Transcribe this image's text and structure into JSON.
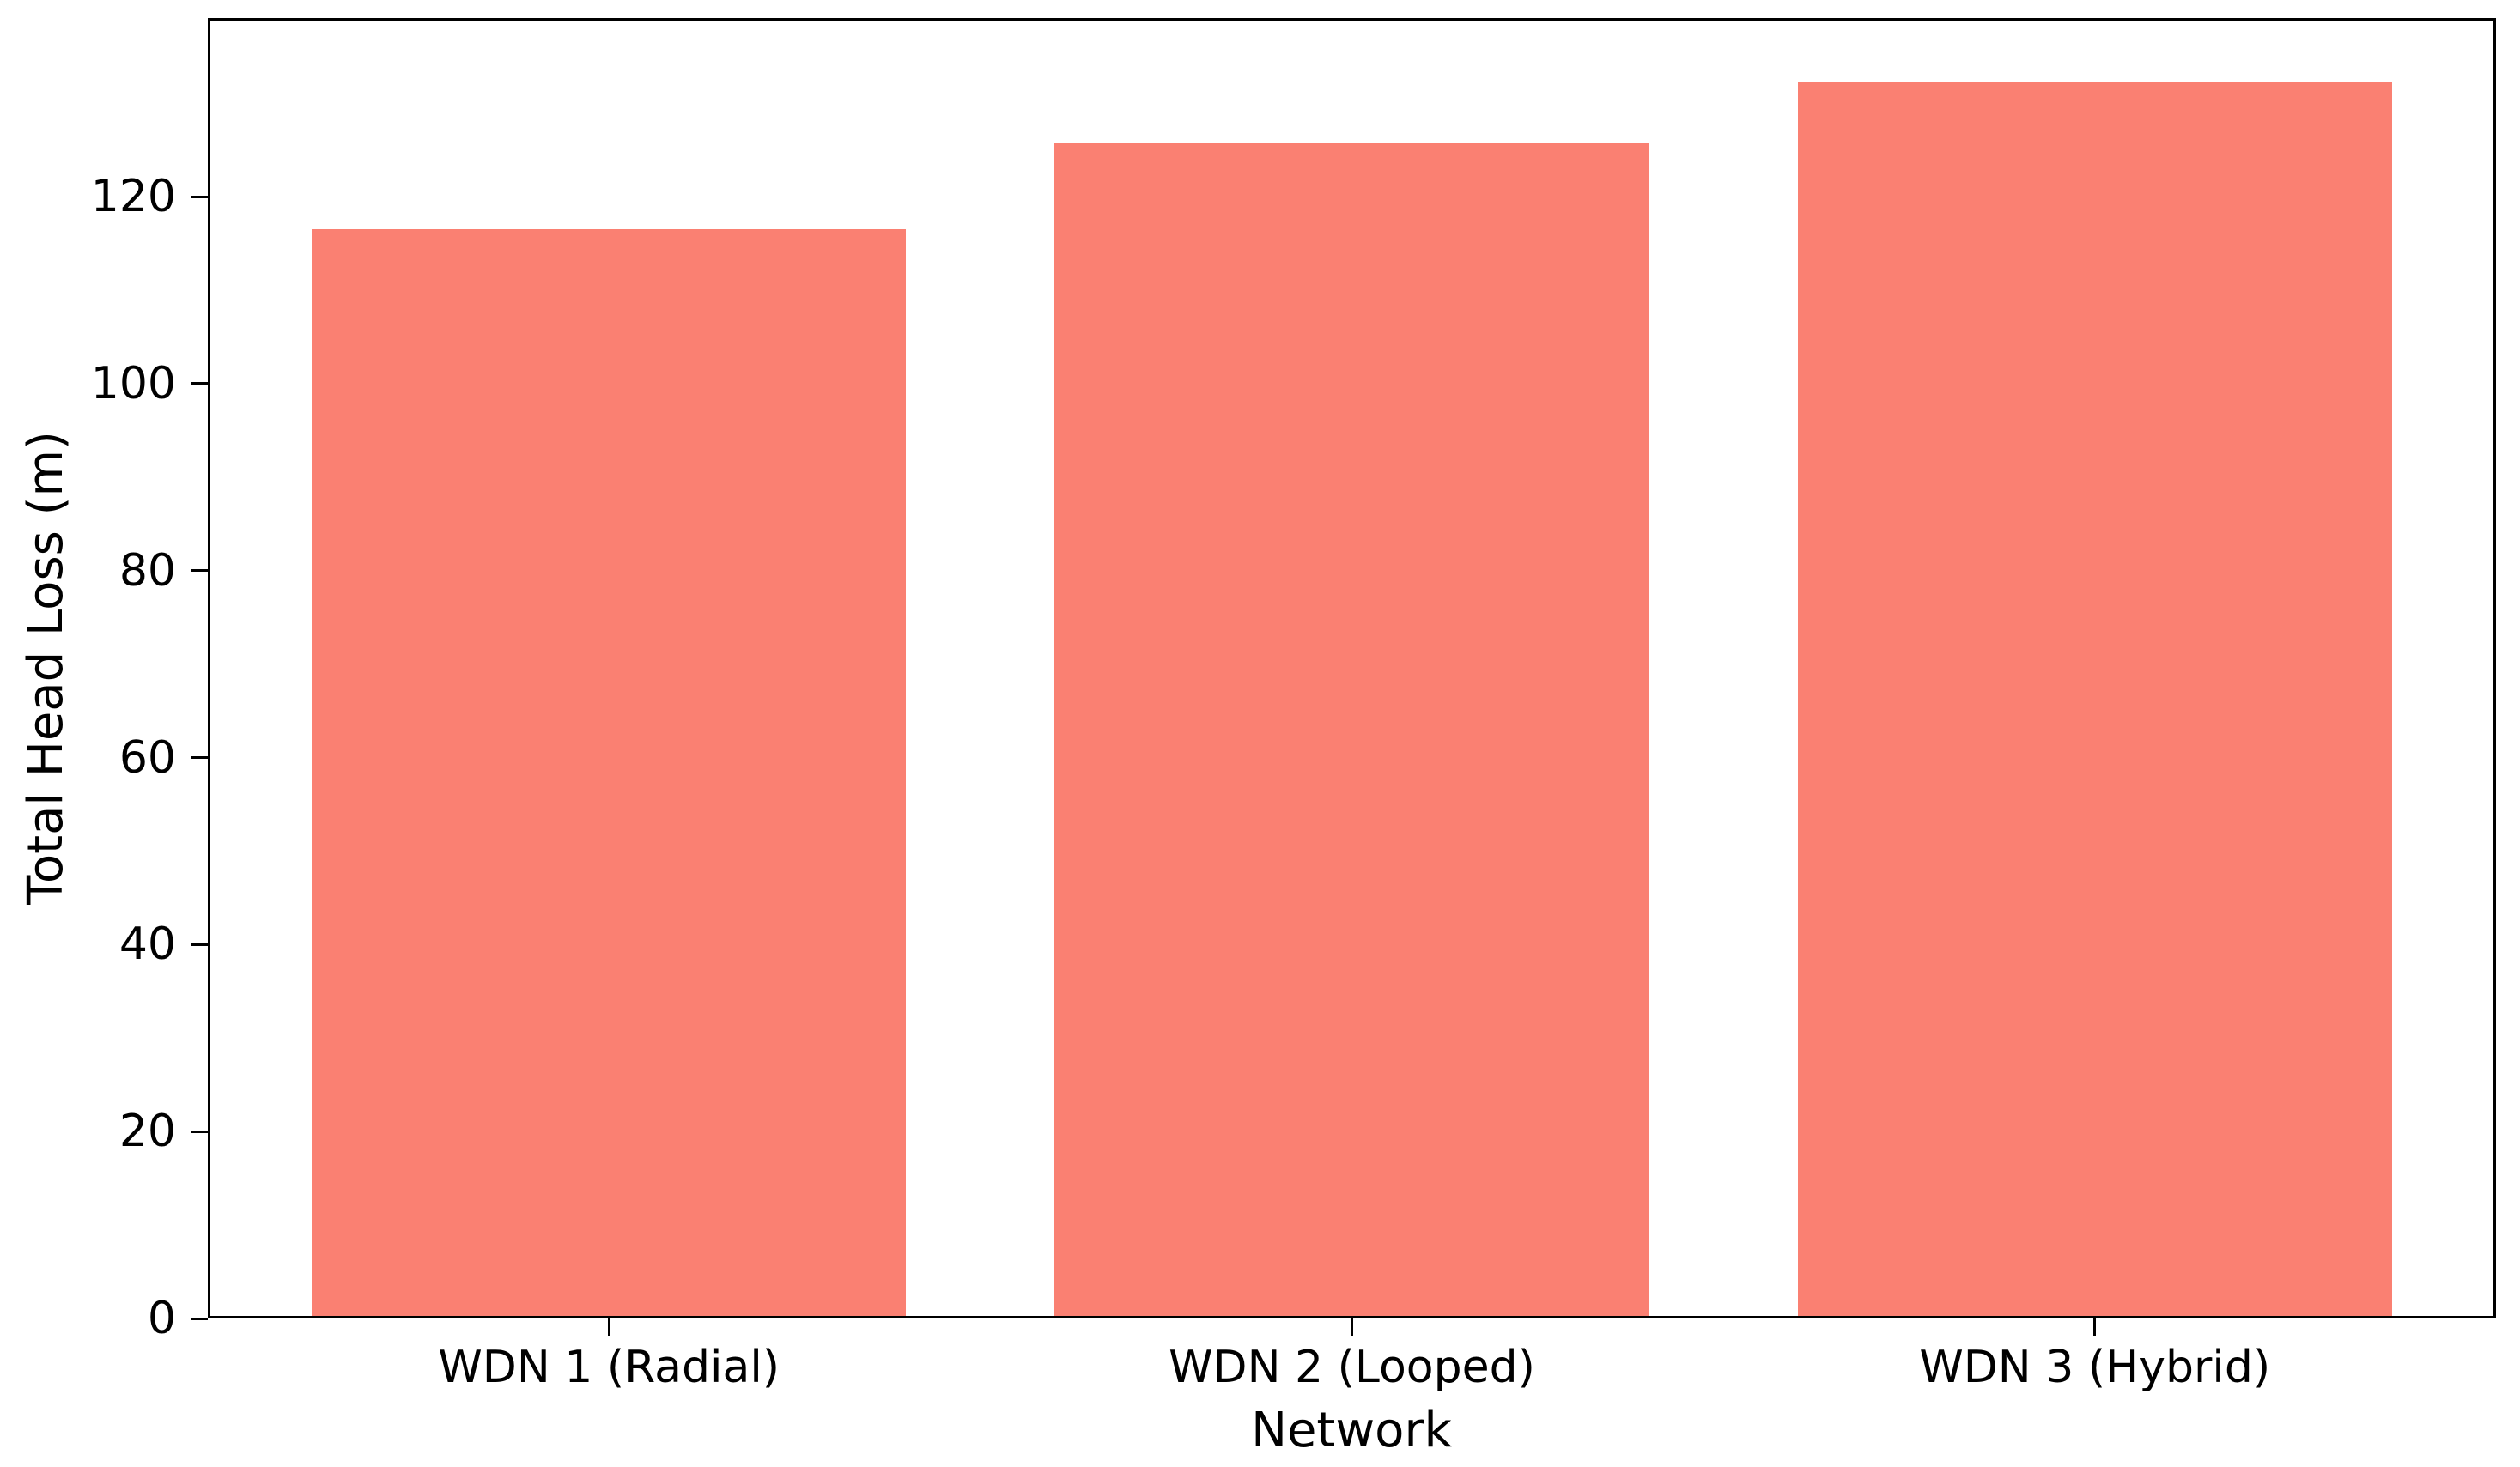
{
  "figure": {
    "background": "#ffffff",
    "text_color": "#000000"
  },
  "chart_data": {
    "type": "bar",
    "title": "",
    "xlabel": "Network",
    "ylabel": "Total Head Loss (m)",
    "categories": [
      "WDN 1 (Radial)",
      "WDN 2 (Looped)",
      "WDN 3 (Hybrid)"
    ],
    "values": [
      116.5,
      125.7,
      132.3
    ],
    "bar_color": "#FA8072",
    "bar_width_data_units": 0.8,
    "xlim": [
      -0.54,
      2.54
    ],
    "ylim": [
      0,
      139.1
    ],
    "yticks": [
      0,
      20,
      40,
      60,
      80,
      100,
      120
    ],
    "grid": false,
    "legend": false,
    "axes_box": true
  }
}
